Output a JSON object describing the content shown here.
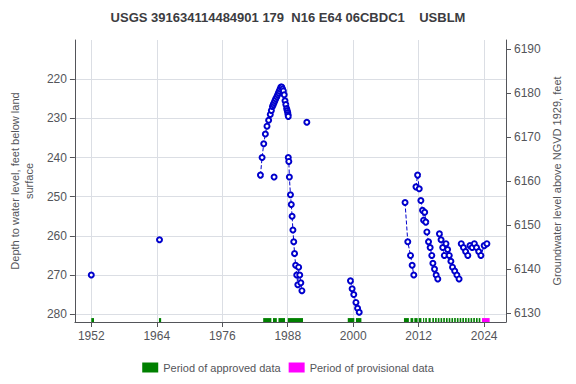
{
  "chart_data": {
    "type": "line",
    "title": "USGS 391634114484901 179  N16 E64 06CBDC1    USBLM",
    "ylabel": "Depth to water level, feet below land\nsurface",
    "y2label": "Groundwater level above NGVD 1929, feet",
    "xlim": [
      1949,
      2028
    ],
    "xticks": [
      1952,
      1964,
      1976,
      1988,
      2000,
      2012,
      2024
    ],
    "ylim": [
      282,
      210
    ],
    "yticks": [
      220,
      230,
      240,
      250,
      260,
      270,
      280
    ],
    "y2lim": [
      6128,
      6192
    ],
    "y2ticks": [
      6130,
      6140,
      6150,
      6160,
      6170,
      6180,
      6190
    ],
    "grid": true,
    "legend": "bottom",
    "series": [
      {
        "type": "line",
        "color": "#0000CC",
        "marker": "open_circle",
        "line_style": "dashed",
        "x": [
          1952.0
        ],
        "values": [
          270.0
        ]
      },
      {
        "type": "line",
        "color": "#0000CC",
        "marker": "open_circle",
        "line_style": "dashed",
        "x": [
          1964.5
        ],
        "values": [
          261.0
        ]
      },
      {
        "type": "line",
        "color": "#0000CC",
        "marker": "open_circle",
        "line_style": "dashed",
        "x": [
          1983.0,
          1983.3,
          1983.6,
          1983.9,
          1984.2,
          1984.5,
          1984.8,
          1985.0,
          1985.2,
          1985.35,
          1985.5,
          1985.65,
          1985.8,
          1986.0,
          1986.15,
          1986.3,
          1986.45,
          1986.6,
          1986.75,
          1986.9,
          1987.05,
          1987.2,
          1987.35,
          1987.5,
          1987.65,
          1987.8,
          1987.9,
          1988.0,
          1988.05,
          1988.1
        ],
        "values": [
          244.5,
          240.0,
          236.5,
          234.0,
          232.0,
          230.5,
          229.0,
          228.0,
          227.0,
          226.5,
          226.0,
          225.5,
          225.0,
          224.5,
          224.0,
          223.5,
          223.0,
          222.5,
          222.0,
          222.0,
          222.5,
          223.0,
          224.0,
          225.5,
          226.5,
          227.5,
          228.0,
          228.5,
          229.0,
          229.5
        ]
      },
      {
        "type": "line",
        "color": "#0000CC",
        "marker": "open_circle",
        "line_style": "dashed",
        "x": [
          1985.5
        ],
        "values": [
          245.0
        ]
      },
      {
        "type": "line",
        "color": "#0000CC",
        "marker": "open_circle",
        "line_style": "dashed",
        "x": [
          1988.1,
          1988.2,
          1988.3,
          1988.5,
          1988.65,
          1988.8,
          1988.95,
          1989.1,
          1989.25,
          1989.45,
          1989.65,
          1989.85,
          1990.0,
          1990.2,
          1990.4,
          1990.6
        ],
        "values": [
          240.0,
          241.0,
          245.0,
          249.5,
          252.0,
          255.0,
          258.5,
          261.5,
          264.5,
          267.5,
          270.0,
          272.5,
          268.0,
          270.0,
          272.0,
          274.0
        ]
      },
      {
        "type": "line",
        "color": "#0000CC",
        "marker": "open_circle",
        "line_style": "dashed",
        "x": [
          1991.5
        ],
        "values": [
          231.0
        ]
      },
      {
        "type": "line",
        "color": "#0000CC",
        "marker": "open_circle",
        "line_style": "dashed",
        "x": [
          1999.5,
          1999.8,
          2000.1,
          2000.5,
          2000.8,
          2001.1
        ],
        "values": [
          271.5,
          273.5,
          275.0,
          277.0,
          278.5,
          279.5
        ]
      },
      {
        "type": "line",
        "color": "#0000CC",
        "marker": "open_circle",
        "line_style": "dashed",
        "x": [
          2009.5,
          2010.0,
          2010.5,
          2010.8,
          2011.1
        ],
        "values": [
          251.5,
          261.5,
          265.0,
          267.5,
          270.0
        ]
      },
      {
        "type": "line",
        "color": "#0000CC",
        "marker": "open_circle",
        "line_style": "dashed",
        "x": [
          2011.5,
          2011.8,
          2012.1
        ],
        "values": [
          247.5,
          244.5,
          248.0
        ]
      },
      {
        "type": "line",
        "color": "#0000CC",
        "marker": "open_circle",
        "line_style": "dashed",
        "x": [
          2012.4,
          2012.7,
          2012.9,
          2013.1,
          2013.3
        ],
        "values": [
          251.0,
          253.5,
          256.0,
          254.0,
          256.5
        ]
      },
      {
        "type": "line",
        "color": "#0000CC",
        "marker": "open_circle",
        "line_style": "dashed",
        "x": [
          2013.5,
          2013.8,
          2014.1,
          2014.4
        ],
        "values": [
          259.0,
          261.5,
          263.0,
          265.0
        ]
      },
      {
        "type": "line",
        "color": "#0000CC",
        "marker": "open_circle",
        "line_style": "dashed",
        "x": [
          2014.6,
          2014.9,
          2015.2,
          2015.5
        ],
        "values": [
          267.0,
          268.5,
          270.0,
          271.0
        ]
      },
      {
        "type": "line",
        "color": "#0000CC",
        "marker": "open_circle",
        "line_style": "dashed",
        "x": [
          2015.8,
          2016.1,
          2016.4,
          2016.7
        ],
        "values": [
          259.5,
          261.0,
          263.0,
          265.0
        ]
      },
      {
        "type": "line",
        "color": "#0000CC",
        "marker": "open_circle",
        "line_style": "dashed",
        "x": [
          2017.0,
          2017.3,
          2017.6,
          2017.9
        ],
        "values": [
          262.0,
          263.5,
          265.0,
          266.5
        ]
      },
      {
        "type": "line",
        "color": "#0000CC",
        "marker": "open_circle",
        "line_style": "dashed",
        "x": [
          2018.2,
          2018.6,
          2019.0,
          2019.4
        ],
        "values": [
          268.0,
          269.0,
          270.0,
          271.0
        ]
      },
      {
        "type": "line",
        "color": "#0000CC",
        "marker": "open_circle",
        "line_style": "dashed",
        "x": [
          2019.8,
          2020.2,
          2020.6,
          2021.0
        ],
        "values": [
          262.0,
          263.0,
          264.0,
          265.0
        ]
      },
      {
        "type": "line",
        "color": "#0000CC",
        "marker": "open_circle",
        "line_style": "dashed",
        "x": [
          2021.4,
          2021.8,
          2022.2,
          2022.6,
          2023.0,
          2023.4,
          2024.0,
          2024.5
        ],
        "values": [
          262.5,
          263.0,
          262.0,
          263.0,
          264.0,
          265.0,
          262.5,
          262.0
        ]
      },
      {
        "type": "span",
        "name": "Period of approved data",
        "color": "#008000",
        "band": [
          281.0,
          282.0
        ],
        "periods": [
          [
            1952.0,
            1952.5
          ],
          [
            1964.4,
            1964.8
          ],
          [
            1983.5,
            1985.0
          ],
          [
            1985.3,
            1986.0
          ],
          [
            1986.3,
            1987.5
          ],
          [
            1988.0,
            1990.8
          ],
          [
            1999.0,
            2000.2
          ],
          [
            2000.5,
            2001.5
          ],
          [
            2009.3,
            2010.2
          ],
          [
            2010.5,
            2011.0
          ],
          [
            2011.2,
            2011.8
          ],
          [
            2012.0,
            2012.5
          ],
          [
            2012.8,
            2013.0
          ],
          [
            2013.2,
            2013.5
          ],
          [
            2013.8,
            2014.2
          ],
          [
            2014.5,
            2014.8
          ],
          [
            2015.0,
            2015.3
          ],
          [
            2015.5,
            2015.8
          ],
          [
            2016.0,
            2016.3
          ],
          [
            2016.5,
            2016.8
          ],
          [
            2017.0,
            2017.3
          ],
          [
            2017.5,
            2017.8
          ],
          [
            2018.0,
            2018.3
          ],
          [
            2018.5,
            2018.8
          ],
          [
            2019.0,
            2019.3
          ],
          [
            2019.5,
            2019.8
          ],
          [
            2020.0,
            2020.3
          ],
          [
            2020.5,
            2020.8
          ],
          [
            2021.0,
            2021.3
          ],
          [
            2021.5,
            2021.8
          ],
          [
            2022.0,
            2022.3
          ],
          [
            2022.5,
            2022.8
          ],
          [
            2023.0,
            2023.3
          ]
        ]
      },
      {
        "type": "span",
        "name": "Period of provisional data",
        "color": "#FF00FF",
        "band": [
          281.0,
          282.0
        ],
        "periods": [
          [
            2023.6,
            2025.0
          ]
        ]
      }
    ]
  }
}
